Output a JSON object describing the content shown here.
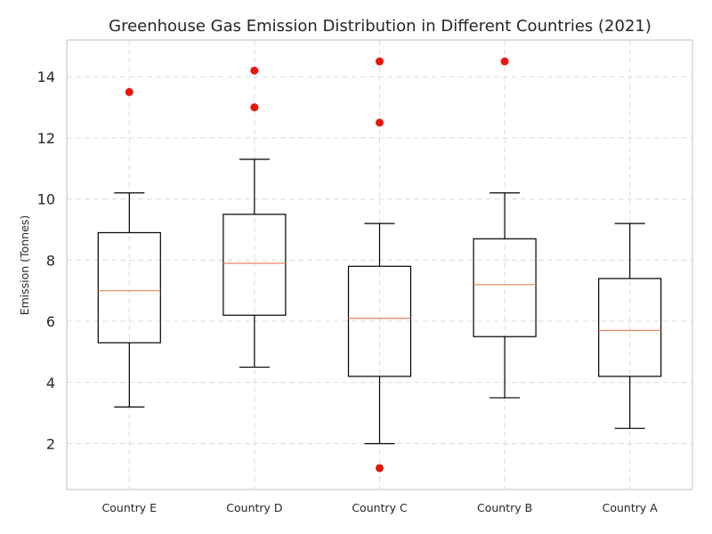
{
  "chart_data": {
    "type": "box",
    "title": "Greenhouse Gas Emission Distribution in Different Countries (2021)",
    "xlabel": "",
    "ylabel": "Emission (Tonnes)",
    "ylim": [
      0.5,
      15.2
    ],
    "yticks": [
      2,
      4,
      6,
      8,
      10,
      12,
      14
    ],
    "grid": true,
    "colors": {
      "box": "#000000",
      "median": "#e8845c",
      "outlier": "#e8160c",
      "grid": "#dcdcdc"
    },
    "categories": [
      "Country E",
      "Country D",
      "Country C",
      "Country B",
      "Country A"
    ],
    "boxes": [
      {
        "category": "Country E",
        "whisker_low": 3.2,
        "q1": 5.3,
        "median": 7.0,
        "q3": 8.9,
        "whisker_high": 10.2,
        "outliers": [
          13.5
        ]
      },
      {
        "category": "Country D",
        "whisker_low": 4.5,
        "q1": 6.2,
        "median": 7.9,
        "q3": 9.5,
        "whisker_high": 11.3,
        "outliers": [
          13.0,
          14.2
        ]
      },
      {
        "category": "Country C",
        "whisker_low": 2.0,
        "q1": 4.2,
        "median": 6.1,
        "q3": 7.8,
        "whisker_high": 9.2,
        "outliers": [
          12.5,
          14.5,
          1.2
        ]
      },
      {
        "category": "Country B",
        "whisker_low": 3.5,
        "q1": 5.5,
        "median": 7.2,
        "q3": 8.7,
        "whisker_high": 10.2,
        "outliers": [
          14.5
        ]
      },
      {
        "category": "Country A",
        "whisker_low": 2.5,
        "q1": 4.2,
        "median": 5.7,
        "q3": 7.4,
        "whisker_high": 9.2,
        "outliers": []
      }
    ]
  }
}
